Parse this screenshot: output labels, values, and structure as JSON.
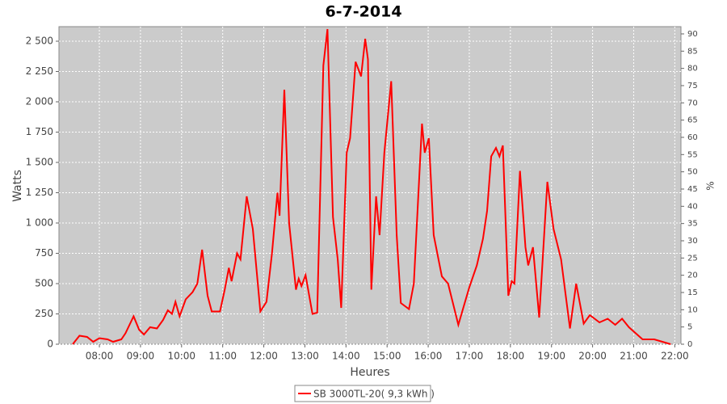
{
  "chart_data": {
    "type": "line",
    "title": "6-7-2014",
    "x_label": "Heures",
    "y_label": "Watts",
    "y2_label": "%",
    "x": [
      "07:21",
      "07:31",
      "07:42",
      "07:51",
      "08:00",
      "08:12",
      "08:20",
      "08:32",
      "08:38",
      "08:50",
      "08:58",
      "09:05",
      "09:14",
      "09:24",
      "09:33",
      "09:40",
      "09:46",
      "09:51",
      "09:57",
      "10:06",
      "10:16",
      "10:23",
      "10:30",
      "10:38",
      "10:44",
      "10:56",
      "11:03",
      "11:09",
      "11:13",
      "11:21",
      "11:26",
      "11:35",
      "11:44",
      "11:55",
      "12:04",
      "12:12",
      "12:20",
      "12:23",
      "12:30",
      "12:37",
      "12:47",
      "12:51",
      "12:55",
      "13:01",
      "13:11",
      "13:18",
      "13:27",
      "13:33",
      "13:41",
      "13:48",
      "13:53",
      "14:01",
      "14:06",
      "14:14",
      "14:22",
      "14:28",
      "14:32",
      "14:37",
      "14:44",
      "14:49",
      "14:56",
      "15:06",
      "15:14",
      "15:20",
      "15:32",
      "15:39",
      "15:51",
      "15:55",
      "16:01",
      "16:08",
      "16:20",
      "16:29",
      "16:44",
      "17:00",
      "17:11",
      "17:20",
      "17:26",
      "17:32",
      "17:39",
      "17:44",
      "17:49",
      "17:57",
      "18:02",
      "18:06",
      "18:14",
      "18:22",
      "18:26",
      "18:33",
      "18:42",
      "18:54",
      "19:03",
      "19:14",
      "19:27",
      "19:36",
      "19:47",
      "19:56",
      "20:10",
      "20:22",
      "20:33",
      "20:43",
      "20:53",
      "21:13",
      "21:30",
      "21:42",
      "21:54"
    ],
    "series": [
      {
        "name": "SB 3000TL-20( 9,3 kWh )",
        "color": "#ff0000",
        "values": [
          0,
          70,
          60,
          20,
          50,
          40,
          20,
          40,
          90,
          230,
          120,
          80,
          140,
          130,
          200,
          280,
          250,
          350,
          230,
          370,
          430,
          500,
          780,
          400,
          270,
          270,
          450,
          630,
          520,
          750,
          700,
          1220,
          950,
          270,
          350,
          750,
          1250,
          1060,
          2100,
          1000,
          450,
          540,
          480,
          570,
          250,
          260,
          2300,
          2600,
          1050,
          700,
          300,
          1580,
          1700,
          2330,
          2210,
          2520,
          2350,
          450,
          1220,
          900,
          1580,
          2170,
          900,
          340,
          290,
          500,
          1820,
          1580,
          1700,
          900,
          560,
          500,
          160,
          470,
          650,
          870,
          1100,
          1550,
          1620,
          1550,
          1640,
          400,
          520,
          500,
          1430,
          800,
          650,
          800,
          220,
          1340,
          950,
          700,
          130,
          500,
          170,
          240,
          180,
          210,
          160,
          210,
          140,
          40,
          40,
          20,
          0
        ]
      }
    ],
    "xlim": [
      "07:01",
      "22:09"
    ],
    "xticks": [
      "08:00",
      "09:00",
      "10:00",
      "11:00",
      "12:00",
      "13:00",
      "14:00",
      "15:00",
      "16:00",
      "17:00",
      "18:00",
      "19:00",
      "20:00",
      "21:00",
      "22:00"
    ],
    "ylim": [
      0,
      2620
    ],
    "yticks": [
      0,
      250,
      500,
      750,
      {
        "value": 1000,
        "label": "1 000"
      },
      {
        "value": 1250,
        "label": "1 250"
      },
      {
        "value": 1500,
        "label": "1 500"
      },
      {
        "value": 1750,
        "label": "1 750"
      },
      {
        "value": 2000,
        "label": "2 000"
      },
      {
        "value": 2250,
        "label": "2 250"
      },
      {
        "value": 2500,
        "label": "2 500"
      }
    ],
    "y2lim": [
      0,
      92.1
    ],
    "y2ticks": [
      0,
      5,
      10,
      15,
      20,
      25,
      30,
      35,
      40,
      45,
      50,
      55,
      60,
      65,
      70,
      75,
      80,
      85,
      90
    ],
    "grid": true,
    "legend": "bottom"
  }
}
